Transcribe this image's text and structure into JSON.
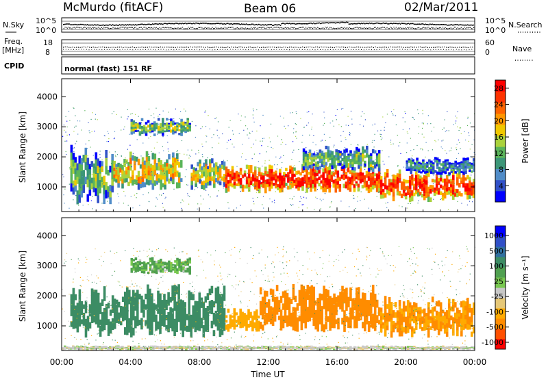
{
  "header": {
    "station": "McMurdo (fitACF)",
    "beam": "Beam 06",
    "date": "02/Mar/2011"
  },
  "summary": {
    "nsky_label": "N.Sky",
    "nsky_ticks": [
      "10^5",
      "10^0"
    ],
    "nsearch_label": "N.Search",
    "nsearch_ticks": [
      "10^5",
      "10^0"
    ],
    "freq_label": "Freq.",
    "freq_unit": "[MHz]",
    "freq_ticks": [
      "18",
      "8"
    ],
    "nave_label": "Nave",
    "nave_ticks": [
      "60",
      "0"
    ],
    "cpid_label": "CPID",
    "cpid_text": "normal (fast) 151 RF"
  },
  "colors": {
    "power_scale": [
      "#0000ff",
      "#3050c8",
      "#508cc8",
      "#3c9678",
      "#5ab45a",
      "#aad23c",
      "#f0c800",
      "#ff9600",
      "#ff6400",
      "#ff3200",
      "#ff0000"
    ],
    "velocity_scale": [
      "#ff0000",
      "#ff5000",
      "#ff8c00",
      "#ffaa00",
      "#e6c878",
      "#c8c8c8",
      "#78c850",
      "#50a050",
      "#3c8c64",
      "#3070a0",
      "#3050c8",
      "#0000ff"
    ]
  },
  "chart_data": [
    {
      "type": "heatmap",
      "panel": "power",
      "ylabel": "Slant Range [km]",
      "xlabel": "",
      "x_ticks": [
        "00:00",
        "04:00",
        "08:00",
        "12:00",
        "16:00",
        "20:00",
        "00:00"
      ],
      "y_ticks": [
        "1000",
        "2000",
        "3000",
        "4000"
      ],
      "xlim_hours": [
        0,
        24
      ],
      "ylim_km": [
        180,
        4600
      ],
      "colorbar_label": "Power [dB]",
      "colorbar_ticks": [
        "4",
        "8",
        "12",
        "16",
        "20",
        "24",
        "28"
      ],
      "colorbar_range": [
        0,
        30
      ],
      "echo_bands": [
        {
          "start_h": 0.5,
          "end_h": 3.0,
          "range_km": [
            400,
            2400
          ],
          "value": 12
        },
        {
          "start_h": 3.0,
          "end_h": 7.0,
          "range_km": [
            900,
            2200
          ],
          "value": 18
        },
        {
          "start_h": 4.0,
          "end_h": 7.5,
          "range_km": [
            2700,
            3300
          ],
          "value": 14
        },
        {
          "start_h": 7.5,
          "end_h": 9.5,
          "range_km": [
            900,
            2000
          ],
          "value": 16
        },
        {
          "start_h": 9.5,
          "end_h": 18.5,
          "range_km": [
            800,
            1800
          ],
          "value": 26
        },
        {
          "start_h": 14.0,
          "end_h": 18.5,
          "range_km": [
            1500,
            2400
          ],
          "value": 12
        },
        {
          "start_h": 18.5,
          "end_h": 24.0,
          "range_km": [
            500,
            1600
          ],
          "value": 26
        },
        {
          "start_h": 20.0,
          "end_h": 24.0,
          "range_km": [
            1400,
            2000
          ],
          "value": 8
        }
      ]
    },
    {
      "type": "heatmap",
      "panel": "velocity",
      "ylabel": "Slant Range [km]",
      "xlabel": "Time UT",
      "x_ticks": [
        "00:00",
        "04:00",
        "08:00",
        "12:00",
        "16:00",
        "20:00",
        "00:00"
      ],
      "y_ticks": [
        "1000",
        "2000",
        "3000",
        "4000"
      ],
      "xlim_hours": [
        0,
        24
      ],
      "ylim_km": [
        180,
        4600
      ],
      "colorbar_label": "Velocity [m s⁻¹]",
      "colorbar_ticks": [
        "1000",
        "500",
        "100",
        "25",
        "-25",
        "-100",
        "-500",
        "-1000"
      ],
      "colorbar_range": [
        -1000,
        1000
      ],
      "echo_bands": [
        {
          "start_h": 0.5,
          "end_h": 9.5,
          "range_km": [
            600,
            2400
          ],
          "value": 150
        },
        {
          "start_h": 4.0,
          "end_h": 7.5,
          "range_km": [
            2700,
            3300
          ],
          "value": 60
        },
        {
          "start_h": 9.5,
          "end_h": 11.5,
          "range_km": [
            800,
            1600
          ],
          "value": -200
        },
        {
          "start_h": 11.5,
          "end_h": 18.5,
          "range_km": [
            800,
            2400
          ],
          "value": -300
        },
        {
          "start_h": 18.5,
          "end_h": 24.0,
          "range_km": [
            600,
            2000
          ],
          "value": -250
        },
        {
          "start_h": 0.0,
          "end_h": 24.0,
          "range_km": [
            200,
            350
          ],
          "value": 0
        }
      ]
    }
  ]
}
